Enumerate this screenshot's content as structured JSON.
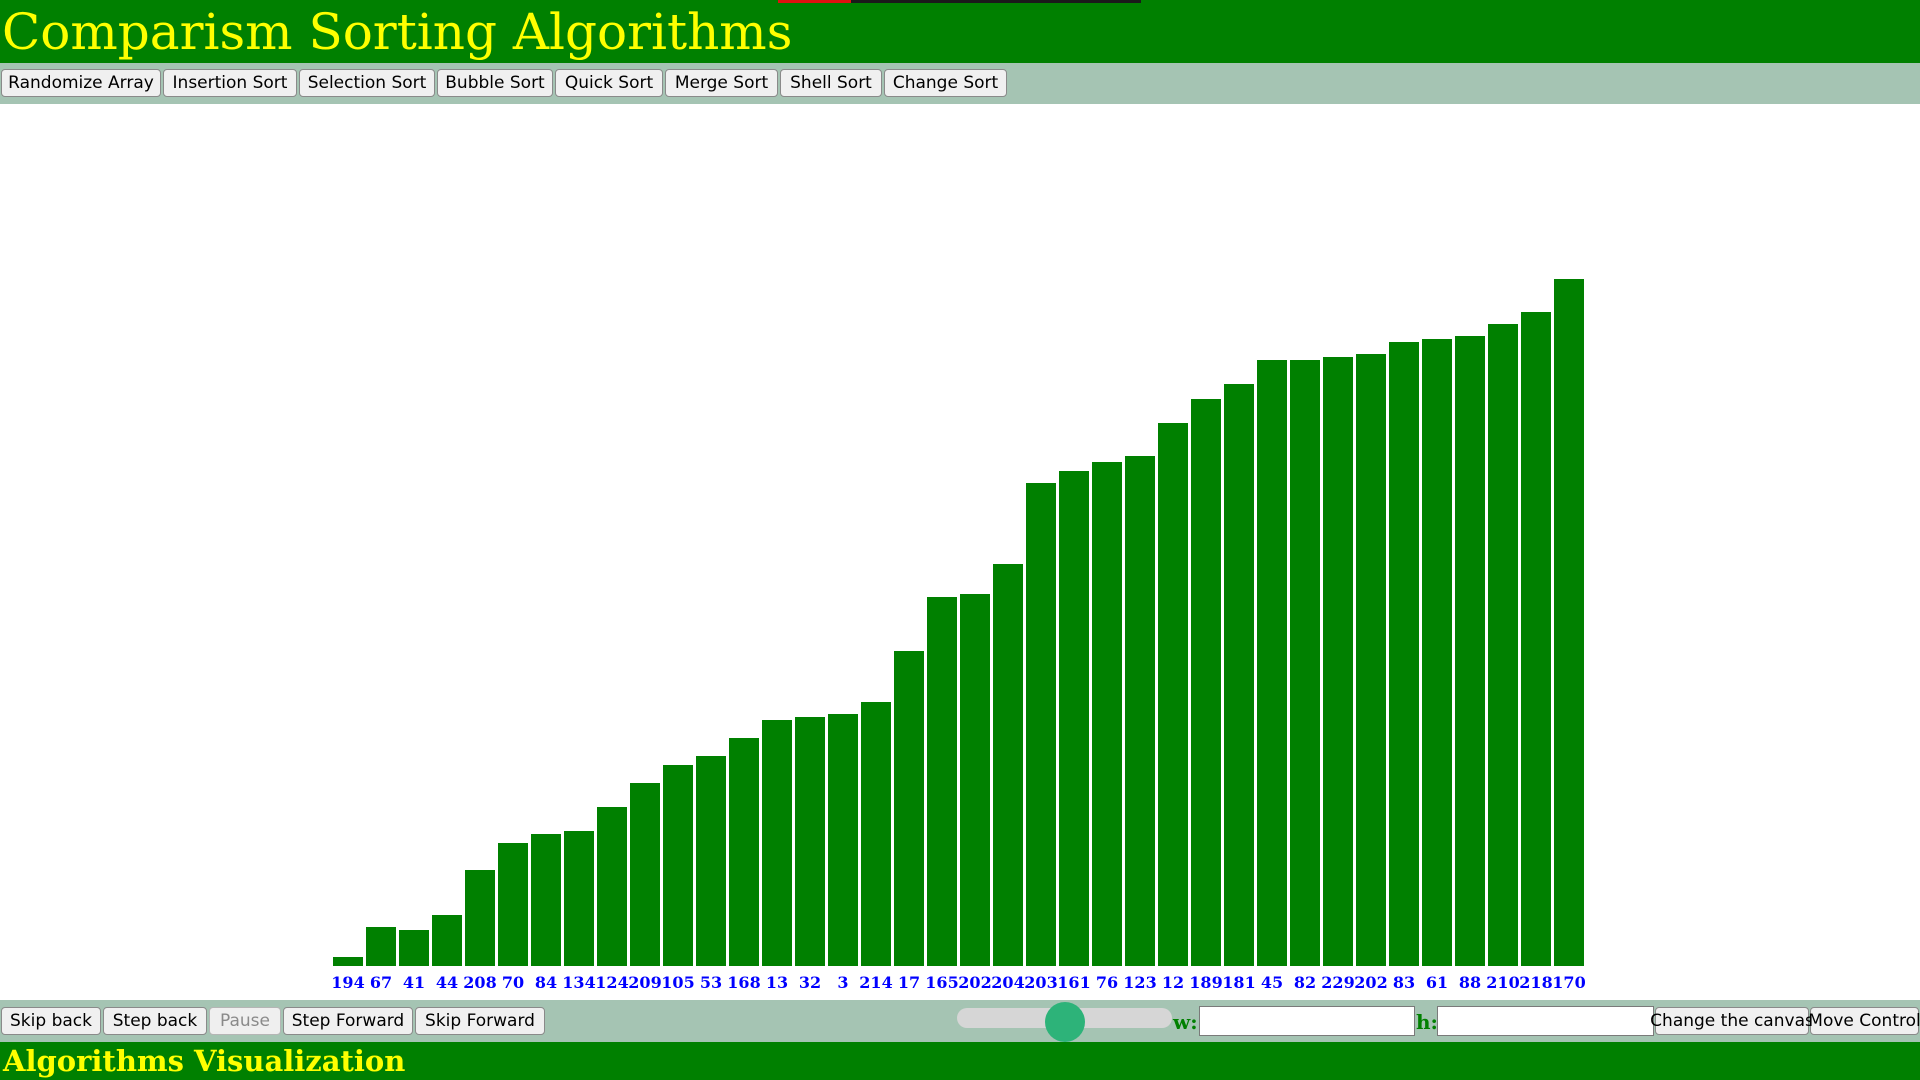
{
  "header": {
    "title": "Comparism Sorting Algorithms",
    "progress_fraction": 0.2
  },
  "toolbar": {
    "buttons": [
      "Randomize Array",
      "Insertion Sort",
      "Selection Sort",
      "Bubble Sort",
      "Quick Sort",
      "Merge Sort",
      "Shell Sort",
      "Change Sort"
    ]
  },
  "controls": {
    "skip_back": "Skip back",
    "step_back": "Step back",
    "pause": "Pause",
    "step_forward": "Step Forward",
    "skip_forward": "Skip Forward",
    "speed_fraction": 0.5,
    "w_label": "w:",
    "h_label": "h:",
    "w_value": "",
    "h_value": "",
    "change_canvas": "Change the canvas",
    "move_control": "Move Control"
  },
  "footer": {
    "title": "Algorithms Visualization"
  },
  "colors": {
    "bar": "#008000",
    "label": "#0000ff",
    "header": "#008000",
    "title": "#ffff00",
    "toolbar": "#a5c4b3"
  },
  "chart_data": {
    "type": "bar",
    "categories": [
      "194",
      "67",
      "41",
      "44",
      "208",
      "70",
      "84",
      "134",
      "124",
      "209",
      "105",
      "53",
      "168",
      "13",
      "32",
      "3",
      "214",
      "17",
      "165",
      "202",
      "204",
      "203",
      "161",
      "76",
      "123",
      "12",
      "189",
      "181",
      "45",
      "82",
      "229",
      "202",
      "83",
      "61",
      "88",
      "210",
      "218",
      "170"
    ],
    "values": [
      3,
      13,
      12,
      17,
      32,
      41,
      44,
      45,
      53,
      61,
      67,
      70,
      76,
      82,
      83,
      84,
      88,
      105,
      123,
      124,
      134,
      161,
      165,
      168,
      170,
      181,
      189,
      194,
      202,
      202,
      203,
      204,
      208,
      209,
      210,
      214,
      218,
      229
    ],
    "ylim": [
      0,
      229
    ]
  }
}
